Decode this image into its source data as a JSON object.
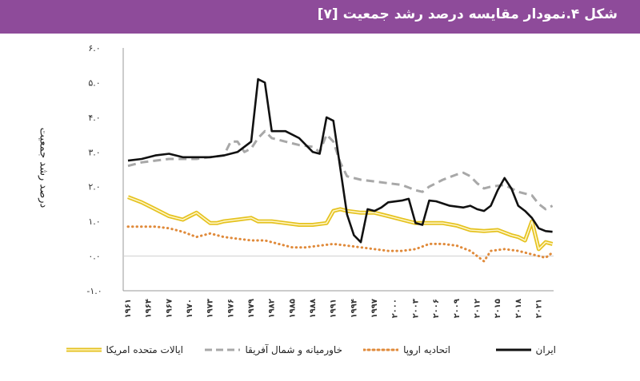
{
  "header": {
    "title": "شکل ۴.نمودار مقایسه درصد رشد جمعیت [۷]"
  },
  "chart_data": {
    "type": "line",
    "ylabel": "درصد رشد جمعیت",
    "ylim": [
      -1,
      6
    ],
    "y_ticks": [
      6,
      5,
      4,
      3,
      2,
      1,
      0,
      -1
    ],
    "y_tick_labels": [
      "۶.۰",
      "۵.۰",
      "۴.۰",
      "۳.۰",
      "۲.۰",
      "۱.۰",
      "۰.۰",
      "-۱.۰"
    ],
    "x_range": [
      1961,
      2022
    ],
    "x_ticks": [
      1961,
      1964,
      1967,
      1970,
      1973,
      1976,
      1979,
      1982,
      1985,
      1988,
      1991,
      1994,
      1997,
      2000,
      2003,
      2006,
      2009,
      2012,
      2015,
      2018,
      2021
    ],
    "x_tick_labels": [
      "۱۹۶۱",
      "۱۹۶۴",
      "۱۹۶۷",
      "۱۹۷۰",
      "۱۹۷۳",
      "۱۹۷۶",
      "۱۹۷۹",
      "۱۹۸۲",
      "۱۹۸۵",
      "۱۹۸۸",
      "۱۹۹۱",
      "۱۹۹۴",
      "۱۹۹۷",
      "۲۰۰۰",
      "۲۰۰۳",
      "۲۰۰۶",
      "۲۰۰۹",
      "۲۰۱۲",
      "۲۰۱۵",
      "۲۰۱۸",
      "۲۰۲۱"
    ],
    "grid": false,
    "legend_position": "bottom",
    "series": [
      {
        "name": "ایران",
        "color": "#111111",
        "style": "solid",
        "points": [
          [
            1961,
            2.75
          ],
          [
            1963,
            2.8
          ],
          [
            1965,
            2.9
          ],
          [
            1967,
            2.95
          ],
          [
            1969,
            2.85
          ],
          [
            1971,
            2.85
          ],
          [
            1973,
            2.85
          ],
          [
            1975,
            2.9
          ],
          [
            1977,
            3.0
          ],
          [
            1979,
            3.3
          ],
          [
            1980,
            5.1
          ],
          [
            1981,
            5.0
          ],
          [
            1982,
            3.6
          ],
          [
            1984,
            3.6
          ],
          [
            1986,
            3.4
          ],
          [
            1988,
            3.0
          ],
          [
            1989,
            2.95
          ],
          [
            1990,
            4.0
          ],
          [
            1991,
            3.9
          ],
          [
            1993,
            1.2
          ],
          [
            1994,
            0.6
          ],
          [
            1995,
            0.4
          ],
          [
            1996,
            1.35
          ],
          [
            1997,
            1.3
          ],
          [
            1998,
            1.4
          ],
          [
            1999,
            1.55
          ],
          [
            2001,
            1.6
          ],
          [
            2002,
            1.65
          ],
          [
            2003,
            0.95
          ],
          [
            2004,
            0.9
          ],
          [
            2005,
            1.6
          ],
          [
            2006,
            1.58
          ],
          [
            2008,
            1.45
          ],
          [
            2010,
            1.4
          ],
          [
            2011,
            1.45
          ],
          [
            2012,
            1.35
          ],
          [
            2013,
            1.3
          ],
          [
            2014,
            1.45
          ],
          [
            2015,
            1.9
          ],
          [
            2016,
            2.25
          ],
          [
            2017,
            1.95
          ],
          [
            2018,
            1.45
          ],
          [
            2019,
            1.3
          ],
          [
            2020,
            1.1
          ],
          [
            2021,
            0.8
          ],
          [
            2022,
            0.72
          ],
          [
            2023,
            0.7
          ]
        ]
      },
      {
        "name": "اتحادیه اروپا",
        "color": "#e08a3a",
        "style": "dotted",
        "points": [
          [
            1961,
            0.85
          ],
          [
            1963,
            0.85
          ],
          [
            1965,
            0.85
          ],
          [
            1967,
            0.8
          ],
          [
            1969,
            0.7
          ],
          [
            1971,
            0.55
          ],
          [
            1973,
            0.65
          ],
          [
            1975,
            0.55
          ],
          [
            1977,
            0.5
          ],
          [
            1979,
            0.45
          ],
          [
            1981,
            0.45
          ],
          [
            1983,
            0.35
          ],
          [
            1985,
            0.25
          ],
          [
            1987,
            0.25
          ],
          [
            1989,
            0.3
          ],
          [
            1991,
            0.35
          ],
          [
            1993,
            0.3
          ],
          [
            1995,
            0.25
          ],
          [
            1997,
            0.2
          ],
          [
            1999,
            0.15
          ],
          [
            2001,
            0.15
          ],
          [
            2003,
            0.2
          ],
          [
            2005,
            0.35
          ],
          [
            2007,
            0.35
          ],
          [
            2009,
            0.3
          ],
          [
            2011,
            0.15
          ],
          [
            2012,
            0.0
          ],
          [
            2013,
            -0.15
          ],
          [
            2014,
            0.15
          ],
          [
            2016,
            0.2
          ],
          [
            2018,
            0.15
          ],
          [
            2020,
            0.05
          ],
          [
            2022,
            -0.05
          ],
          [
            2023,
            0.1
          ]
        ]
      },
      {
        "name": "خاورمیانه و شمال آفریقا",
        "color": "#a8a8a8",
        "style": "dashed",
        "points": [
          [
            1961,
            2.6
          ],
          [
            1963,
            2.7
          ],
          [
            1965,
            2.75
          ],
          [
            1967,
            2.8
          ],
          [
            1969,
            2.8
          ],
          [
            1971,
            2.8
          ],
          [
            1973,
            2.85
          ],
          [
            1975,
            2.9
          ],
          [
            1976,
            3.3
          ],
          [
            1977,
            3.3
          ],
          [
            1978,
            3.0
          ],
          [
            1979,
            3.1
          ],
          [
            1980,
            3.4
          ],
          [
            1981,
            3.6
          ],
          [
            1982,
            3.4
          ],
          [
            1984,
            3.3
          ],
          [
            1986,
            3.2
          ],
          [
            1988,
            3.15
          ],
          [
            1989,
            3.0
          ],
          [
            1990,
            3.5
          ],
          [
            1991,
            3.3
          ],
          [
            1992,
            2.7
          ],
          [
            1993,
            2.3
          ],
          [
            1995,
            2.2
          ],
          [
            1997,
            2.15
          ],
          [
            1999,
            2.1
          ],
          [
            2001,
            2.05
          ],
          [
            2003,
            1.9
          ],
          [
            2004,
            1.85
          ],
          [
            2005,
            2.0
          ],
          [
            2007,
            2.2
          ],
          [
            2009,
            2.35
          ],
          [
            2010,
            2.4
          ],
          [
            2011,
            2.3
          ],
          [
            2012,
            2.1
          ],
          [
            2013,
            1.95
          ],
          [
            2014,
            2.0
          ],
          [
            2016,
            2.05
          ],
          [
            2018,
            1.85
          ],
          [
            2020,
            1.75
          ],
          [
            2021,
            1.5
          ],
          [
            2022,
            1.35
          ],
          [
            2023,
            1.45
          ]
        ]
      },
      {
        "name": "ایالات متحده امریکا",
        "color": "#f2d23a",
        "style": "double",
        "points": [
          [
            1961,
            1.7
          ],
          [
            1963,
            1.55
          ],
          [
            1965,
            1.35
          ],
          [
            1967,
            1.15
          ],
          [
            1969,
            1.05
          ],
          [
            1970,
            1.15
          ],
          [
            1971,
            1.25
          ],
          [
            1972,
            1.1
          ],
          [
            1973,
            0.95
          ],
          [
            1974,
            0.95
          ],
          [
            1975,
            1.0
          ],
          [
            1977,
            1.05
          ],
          [
            1979,
            1.1
          ],
          [
            1980,
            1.0
          ],
          [
            1982,
            1.0
          ],
          [
            1984,
            0.95
          ],
          [
            1986,
            0.9
          ],
          [
            1988,
            0.9
          ],
          [
            1990,
            0.95
          ],
          [
            1991,
            1.3
          ],
          [
            1992,
            1.35
          ],
          [
            1993,
            1.3
          ],
          [
            1995,
            1.25
          ],
          [
            1997,
            1.25
          ],
          [
            1999,
            1.15
          ],
          [
            2001,
            1.05
          ],
          [
            2003,
            0.95
          ],
          [
            2005,
            0.95
          ],
          [
            2007,
            0.95
          ],
          [
            2009,
            0.88
          ],
          [
            2011,
            0.75
          ],
          [
            2013,
            0.72
          ],
          [
            2015,
            0.75
          ],
          [
            2017,
            0.6
          ],
          [
            2018,
            0.55
          ],
          [
            2019,
            0.45
          ],
          [
            2020,
            1.0
          ],
          [
            2021,
            0.2
          ],
          [
            2022,
            0.4
          ],
          [
            2023,
            0.35
          ]
        ]
      }
    ]
  }
}
